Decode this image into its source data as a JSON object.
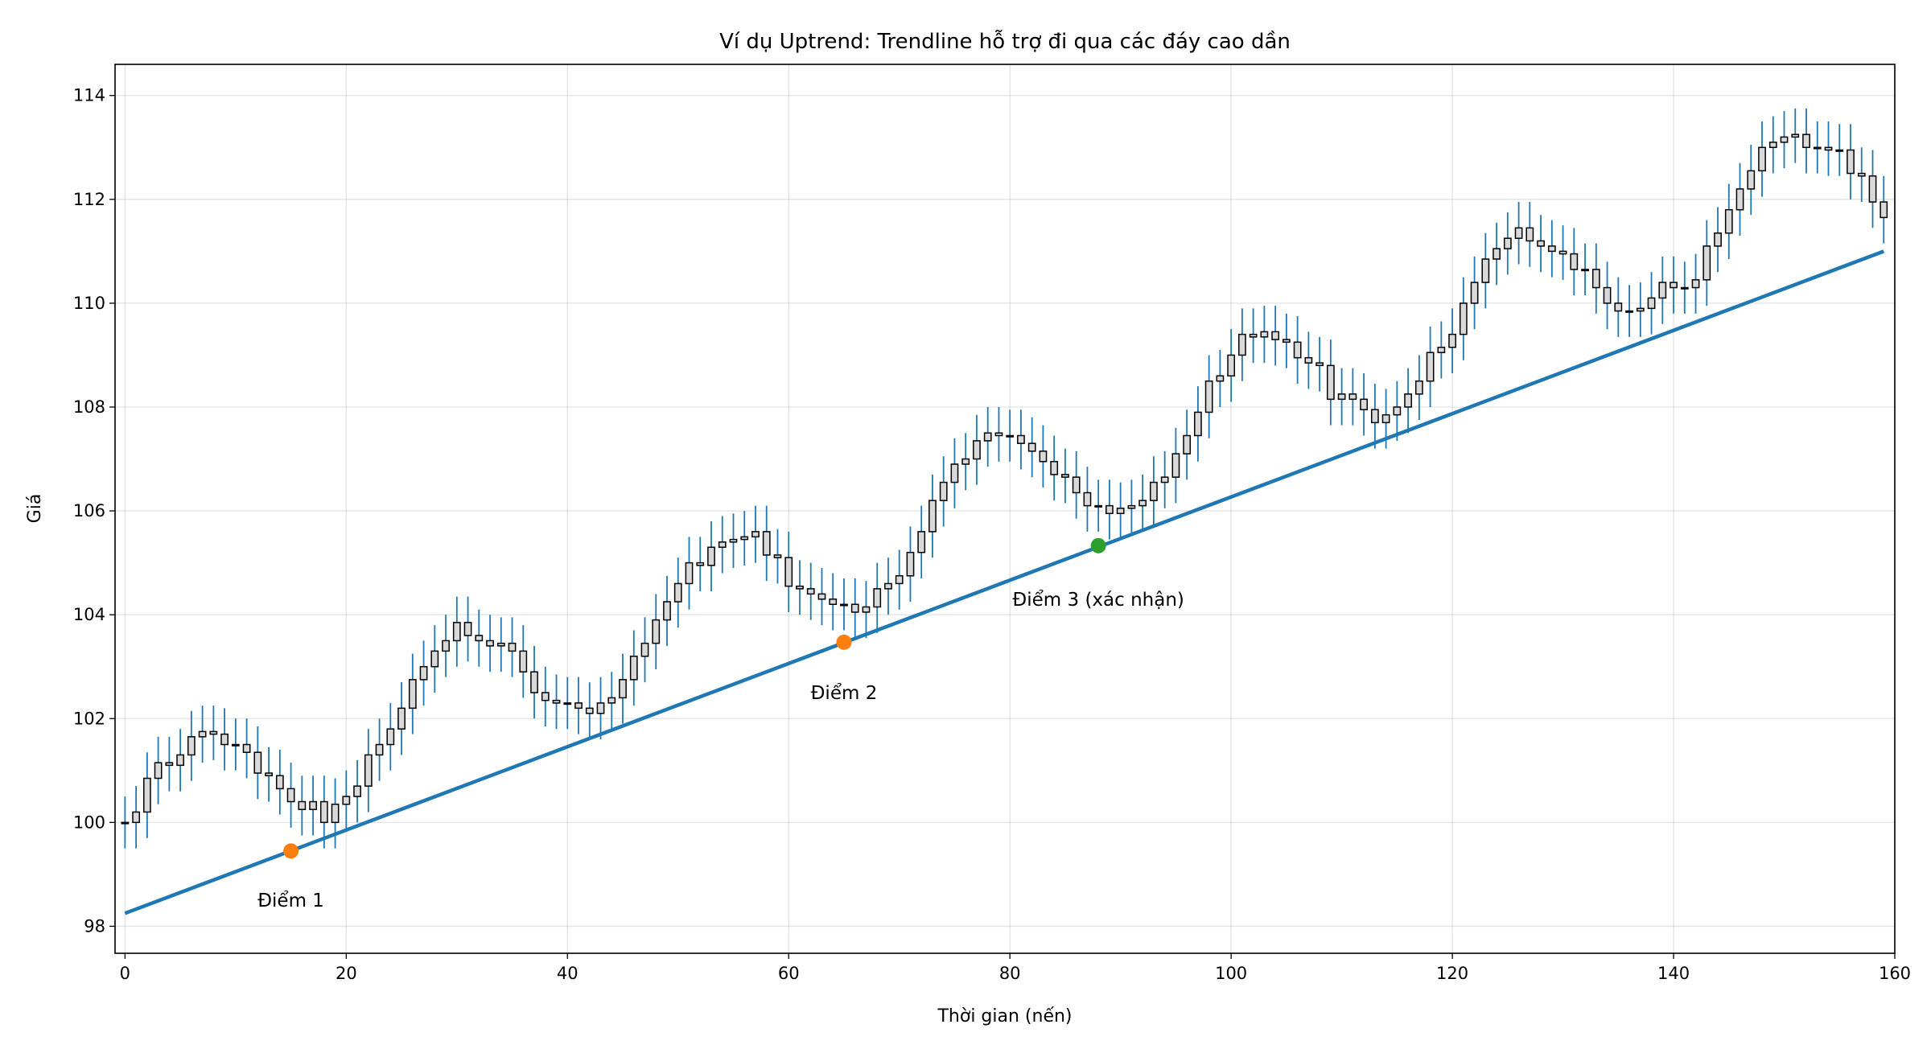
{
  "chart_data": {
    "type": "candlestick",
    "title": "Ví dụ Uptrend: Trendline hỗ trợ đi qua các đáy cao dần",
    "xlabel": "Thời gian (nến)",
    "ylabel": "Giá",
    "xlim": [
      -0.9,
      160
    ],
    "ylim": [
      97.48,
      114.6
    ],
    "xticks": [
      0,
      20,
      40,
      60,
      80,
      100,
      120,
      140,
      160
    ],
    "yticks": [
      98,
      100,
      102,
      104,
      106,
      108,
      110,
      112,
      114
    ],
    "grid": true,
    "colors": {
      "wick": "#1f77b4",
      "body_edge": "#000000",
      "body_fill": "#d9d9d9",
      "trendline": "#1f77b4",
      "touch_point": "#ff7f0e",
      "confirm_point": "#2ca02c"
    },
    "open": [
      100.0,
      100.0,
      100.2,
      100.85,
      101.15,
      101.1,
      101.3,
      101.65,
      101.75,
      101.7,
      101.5,
      101.5,
      101.35,
      100.95,
      100.9,
      100.65,
      100.4,
      100.25,
      100.4,
      100.0,
      100.35,
      100.5,
      100.7,
      101.3,
      101.5,
      101.8,
      102.2,
      102.75,
      103.0,
      103.3,
      103.5,
      103.85,
      103.6,
      103.5,
      103.4,
      103.45,
      103.3,
      102.9,
      102.5,
      102.35,
      102.3,
      102.3,
      102.2,
      102.1,
      102.3,
      102.4,
      102.75,
      103.2,
      103.45,
      103.9,
      104.25,
      104.6,
      105.0,
      104.95,
      105.3,
      105.4,
      105.45,
      105.5,
      105.6,
      105.15,
      105.1,
      104.55,
      104.5,
      104.4,
      104.3,
      104.2,
      104.2,
      104.05,
      104.15,
      104.5,
      104.6,
      104.75,
      105.2,
      105.6,
      106.2,
      106.55,
      106.9,
      107.0,
      107.35,
      107.5,
      107.45,
      107.45,
      107.3,
      107.15,
      106.95,
      106.7,
      106.65,
      106.35,
      106.1,
      106.1,
      105.95,
      106.05,
      106.1,
      106.2,
      106.55,
      106.65,
      107.1,
      107.45,
      107.9,
      108.5,
      108.6,
      109.0,
      109.4,
      109.35,
      109.45,
      109.3,
      109.25,
      108.95,
      108.85,
      108.8,
      108.15,
      108.25,
      108.15,
      107.95,
      107.7,
      107.85,
      108.0,
      108.25,
      108.5,
      109.05,
      109.15,
      109.4,
      110.0,
      110.4,
      110.85,
      111.05,
      111.25,
      111.45,
      111.2,
      111.1,
      111.0,
      110.95,
      110.65,
      110.65,
      110.3,
      110.0,
      109.85,
      109.85,
      109.9,
      110.1,
      110.4,
      110.3,
      110.3,
      110.45,
      111.1,
      111.35,
      111.8,
      112.2,
      112.55,
      113.0,
      113.1,
      113.2,
      113.25,
      113.0,
      113.0,
      112.95,
      112.95,
      112.5,
      112.45,
      111.95
    ],
    "high": [
      100.5,
      100.7,
      101.35,
      101.65,
      101.65,
      101.8,
      102.15,
      102.25,
      102.25,
      102.2,
      102.0,
      102.0,
      101.85,
      101.45,
      101.4,
      101.15,
      100.9,
      100.9,
      100.9,
      100.85,
      101.0,
      101.2,
      101.8,
      102.0,
      102.3,
      102.7,
      103.25,
      103.5,
      103.8,
      104.0,
      104.35,
      104.35,
      104.1,
      104.0,
      103.95,
      103.95,
      103.8,
      103.4,
      103.0,
      102.85,
      102.8,
      102.8,
      102.7,
      102.8,
      102.9,
      103.25,
      103.7,
      103.95,
      104.4,
      104.75,
      105.1,
      105.5,
      105.5,
      105.8,
      105.9,
      105.95,
      106.0,
      106.1,
      106.1,
      105.65,
      105.6,
      105.05,
      105.0,
      104.9,
      104.8,
      104.7,
      104.7,
      104.65,
      105.0,
      105.1,
      105.25,
      105.7,
      106.1,
      106.7,
      107.05,
      107.4,
      107.5,
      107.85,
      108.0,
      108.0,
      107.95,
      107.95,
      107.8,
      107.65,
      107.45,
      107.2,
      107.15,
      106.85,
      106.6,
      106.6,
      106.55,
      106.6,
      106.7,
      107.05,
      107.15,
      107.6,
      107.95,
      108.4,
      109.0,
      109.1,
      109.5,
      109.9,
      109.9,
      109.95,
      109.95,
      109.8,
      109.75,
      109.45,
      109.35,
      109.3,
      108.75,
      108.75,
      108.65,
      108.45,
      108.35,
      108.5,
      108.75,
      109.0,
      109.55,
      109.65,
      109.9,
      110.5,
      110.9,
      111.35,
      111.55,
      111.75,
      111.95,
      111.95,
      111.7,
      111.6,
      111.5,
      111.45,
      111.15,
      111.15,
      110.8,
      110.5,
      110.35,
      110.4,
      110.6,
      110.9,
      110.9,
      110.8,
      110.95,
      111.6,
      111.85,
      112.3,
      112.7,
      113.05,
      113.5,
      113.6,
      113.7,
      113.75,
      113.75,
      113.5,
      113.5,
      113.45,
      113.45,
      113.0,
      112.95,
      112.45
    ],
    "low": [
      99.5,
      99.5,
      99.7,
      100.35,
      100.6,
      100.6,
      100.8,
      101.15,
      101.2,
      101.0,
      101.0,
      100.85,
      100.45,
      100.4,
      100.15,
      99.9,
      99.75,
      99.75,
      99.5,
      99.5,
      99.85,
      100.0,
      100.2,
      100.8,
      101.0,
      101.3,
      101.7,
      102.25,
      102.5,
      102.8,
      103.0,
      103.1,
      103.0,
      102.9,
      102.9,
      102.8,
      102.4,
      102.0,
      101.85,
      101.8,
      101.8,
      101.7,
      101.6,
      101.6,
      101.8,
      101.9,
      102.25,
      102.7,
      102.95,
      103.4,
      103.75,
      104.1,
      104.45,
      104.45,
      104.8,
      104.9,
      104.95,
      105.0,
      104.65,
      104.6,
      104.05,
      104.0,
      103.9,
      103.8,
      103.7,
      103.7,
      103.55,
      103.55,
      103.65,
      104.0,
      104.1,
      104.25,
      104.7,
      105.1,
      105.7,
      106.05,
      106.4,
      106.5,
      106.85,
      106.95,
      106.95,
      106.8,
      106.65,
      106.45,
      106.2,
      106.15,
      105.85,
      105.6,
      105.6,
      105.45,
      105.45,
      105.55,
      105.6,
      105.7,
      106.05,
      106.15,
      106.6,
      106.95,
      107.4,
      108.0,
      108.1,
      108.5,
      108.85,
      108.85,
      108.8,
      108.75,
      108.45,
      108.35,
      108.3,
      107.65,
      107.65,
      107.65,
      107.45,
      107.2,
      107.2,
      107.35,
      107.5,
      107.75,
      108.0,
      108.55,
      108.65,
      108.9,
      109.5,
      109.9,
      110.35,
      110.55,
      110.75,
      110.7,
      110.6,
      110.5,
      110.45,
      110.15,
      110.15,
      109.8,
      109.5,
      109.35,
      109.35,
      109.35,
      109.4,
      109.6,
      109.8,
      109.8,
      109.8,
      109.95,
      110.6,
      110.85,
      111.3,
      111.7,
      112.05,
      112.5,
      112.6,
      112.7,
      112.5,
      112.5,
      112.45,
      112.45,
      112.0,
      111.95,
      111.45,
      111.15
    ],
    "close": [
      100.0,
      100.2,
      100.85,
      101.15,
      101.1,
      101.3,
      101.65,
      101.75,
      101.7,
      101.5,
      101.5,
      101.35,
      100.95,
      100.9,
      100.65,
      100.4,
      100.25,
      100.4,
      100.0,
      100.35,
      100.5,
      100.7,
      101.3,
      101.5,
      101.8,
      102.2,
      102.75,
      103.0,
      103.3,
      103.5,
      103.85,
      103.6,
      103.5,
      103.4,
      103.45,
      103.3,
      102.9,
      102.5,
      102.35,
      102.3,
      102.3,
      102.2,
      102.1,
      102.3,
      102.4,
      102.75,
      103.2,
      103.45,
      103.9,
      104.25,
      104.6,
      105.0,
      104.95,
      105.3,
      105.4,
      105.45,
      105.5,
      105.6,
      105.15,
      105.1,
      104.55,
      104.5,
      104.4,
      104.3,
      104.2,
      104.2,
      104.05,
      104.15,
      104.5,
      104.6,
      104.75,
      105.2,
      105.6,
      106.2,
      106.55,
      106.9,
      107.0,
      107.35,
      107.5,
      107.45,
      107.45,
      107.3,
      107.15,
      106.95,
      106.7,
      106.65,
      106.35,
      106.1,
      106.1,
      105.95,
      106.05,
      106.1,
      106.2,
      106.55,
      106.65,
      107.1,
      107.45,
      107.9,
      108.5,
      108.6,
      109.0,
      109.4,
      109.35,
      109.45,
      109.3,
      109.25,
      108.95,
      108.85,
      108.8,
      108.15,
      108.25,
      108.15,
      107.95,
      107.7,
      107.85,
      108.0,
      108.25,
      108.5,
      109.05,
      109.15,
      109.4,
      110.0,
      110.4,
      110.85,
      111.05,
      111.25,
      111.45,
      111.2,
      111.1,
      111.0,
      110.95,
      110.65,
      110.65,
      110.3,
      110.0,
      109.85,
      109.85,
      109.9,
      110.1,
      110.4,
      110.3,
      110.3,
      110.45,
      111.1,
      111.35,
      111.8,
      112.2,
      112.55,
      113.0,
      113.1,
      113.2,
      113.25,
      113.0,
      113.0,
      112.95,
      112.95,
      112.5,
      112.45,
      111.95,
      111.65
    ],
    "trendline": {
      "x": [
        0,
        159
      ],
      "y": [
        98.25,
        111.0
      ]
    },
    "points": [
      {
        "label": "Điểm 1",
        "x": 15,
        "y": 99.45,
        "label_y": 98.5,
        "color": "#ff7f0e"
      },
      {
        "label": "Điểm 2",
        "x": 65,
        "y": 103.47,
        "label_y": 102.5,
        "color": "#ff7f0e"
      },
      {
        "label": "Điểm 3 (xác nhận)",
        "x": 88,
        "y": 105.33,
        "label_y": 104.3,
        "color": "#2ca02c"
      }
    ]
  }
}
